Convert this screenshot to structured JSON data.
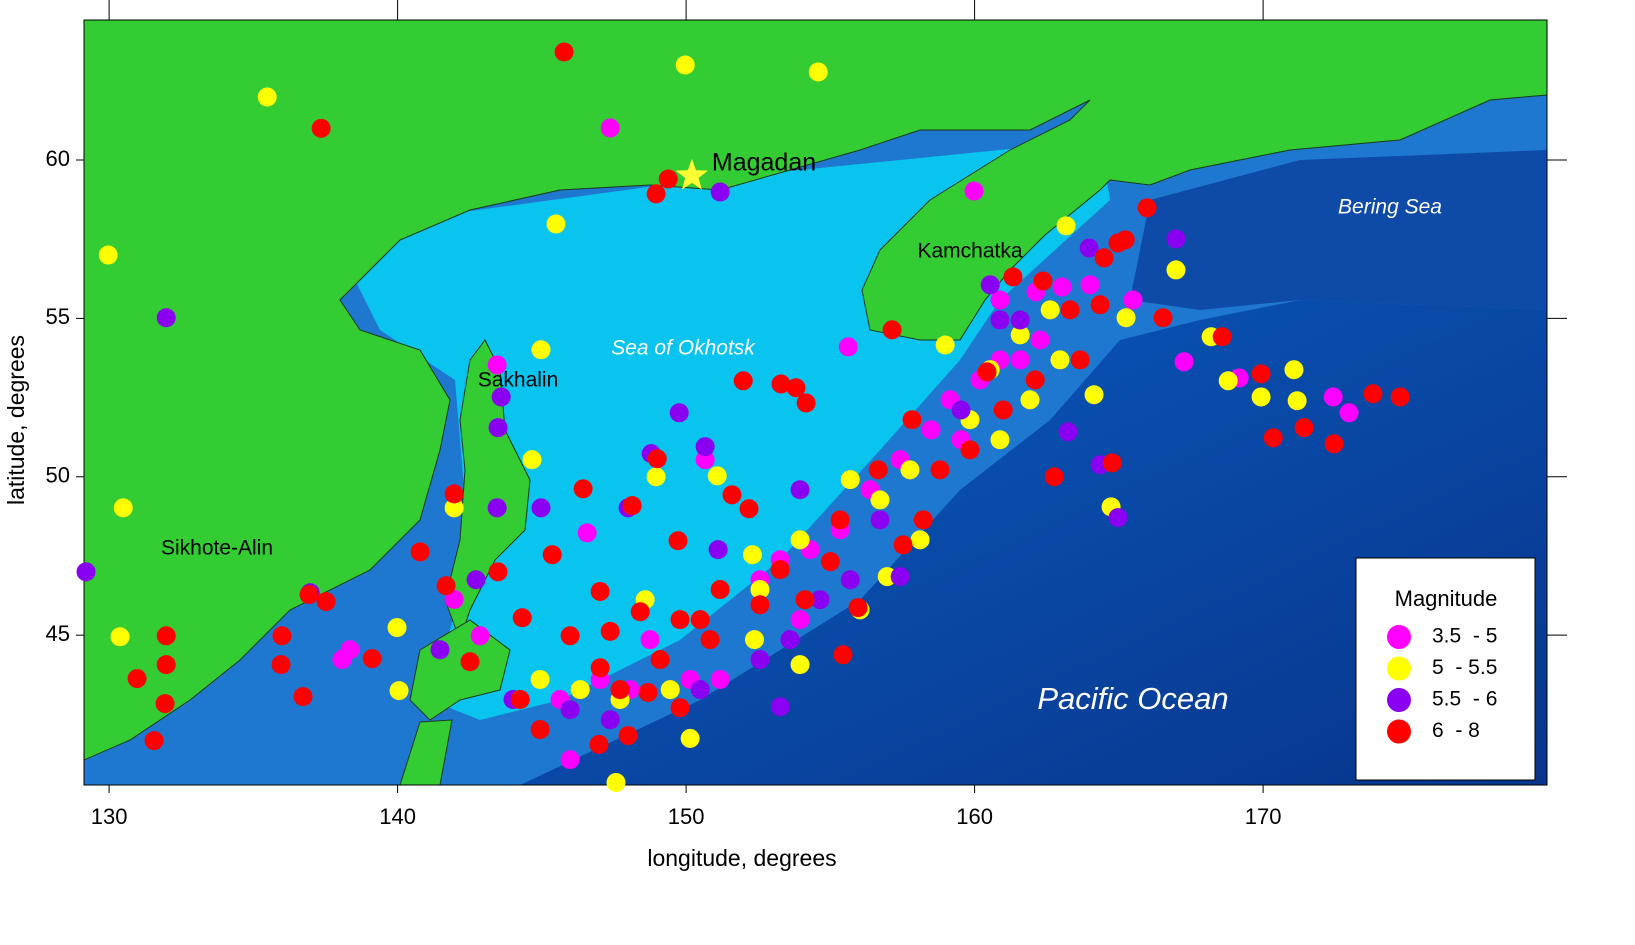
{
  "chart_data": {
    "type": "scatter",
    "x_label": "longitude, degrees",
    "y_label": "latitude, degrees",
    "xlim": [
      129.13,
      179.84
    ],
    "ylim": [
      40.27,
      64.42
    ],
    "xticks": [
      130,
      140,
      150,
      160,
      170
    ],
    "yticks": [
      45,
      50,
      55,
      60
    ],
    "legend_title": "Magnitude",
    "legend": "lower right",
    "landmark": {
      "label": "Magadan",
      "x": 150.2,
      "y": 59.5,
      "color": "#ffff33"
    },
    "annotations": [
      "Sea of Okhotsk",
      "Kamchatka",
      "Bering Sea",
      "Sakhalin",
      "Sikhote-Alin",
      "Pacific Ocean"
    ],
    "series": [
      {
        "name": "3.5  - 5",
        "color": "#ff00ff",
        "x": [
          147.37,
          159.98,
          143.45,
          167.26,
          169.17,
          172.43,
          172.98,
          165.49,
          155.62,
          162.13,
          163.03,
          164.0,
          160.88,
          162.27,
          161.58,
          160.19,
          159.15,
          157.42,
          156.38,
          155.34,
          154.3,
          153.26,
          152.56,
          150.66,
          146.57,
          138.35,
          138.07,
          141.96,
          142.86,
          147.02,
          148.06,
          148.75,
          150.14,
          151.18,
          145.63,
          145.98,
          153.95,
          158.49,
          159.53,
          160.88
        ],
        "y": [
          61.01,
          59.02,
          53.53,
          53.63,
          53.12,
          52.52,
          52.02,
          55.58,
          54.1,
          55.84,
          55.99,
          56.06,
          55.58,
          54.32,
          53.69,
          53.06,
          52.43,
          50.54,
          49.59,
          48.33,
          47.7,
          47.38,
          46.75,
          50.54,
          48.23,
          44.54,
          44.23,
          46.13,
          44.98,
          43.6,
          43.28,
          44.86,
          43.6,
          43.6,
          42.97,
          41.07,
          45.49,
          51.48,
          51.17,
          53.69
        ]
      },
      {
        "name": "5  - 5.5",
        "color": "#ffff00",
        "x": [
          135.48,
          149.97,
          154.58,
          129.97,
          145.49,
          144.97,
          163.17,
          166.98,
          165.25,
          168.2,
          168.79,
          171.07,
          171.18,
          169.93,
          164.73,
          130.49,
          130.38,
          144.66,
          141.96,
          139.98,
          140.05,
          147.57,
          150.14,
          151.08,
          148.96,
          152.3,
          152.37,
          148.58,
          153.95,
          155.69,
          156.97,
          158.11,
          158.98,
          159.84,
          160.88,
          161.92,
          162.96,
          164.14,
          156.03,
          153.95,
          152.56,
          146.33,
          144.94,
          147.71,
          149.45,
          157.76,
          156.72,
          160.54,
          161.58,
          162.62
        ],
        "y": [
          61.99,
          63.0,
          62.78,
          57.0,
          57.98,
          54.01,
          57.92,
          56.53,
          55.02,
          54.42,
          53.03,
          53.38,
          52.4,
          52.52,
          49.05,
          49.02,
          44.95,
          50.54,
          49.02,
          45.24,
          43.25,
          40.35,
          41.74,
          50.03,
          50.0,
          47.54,
          44.86,
          46.12,
          44.07,
          49.91,
          46.85,
          48.01,
          54.16,
          51.8,
          51.17,
          52.43,
          53.69,
          52.59,
          45.8,
          48.01,
          46.44,
          43.28,
          43.6,
          42.97,
          43.28,
          50.22,
          49.27,
          53.38,
          54.48,
          55.27
        ]
      },
      {
        "name": "5.5  - 6",
        "color": "#8a00f0",
        "x": [
          131.98,
          151.18,
          163.97,
          166.98,
          143.59,
          143.48,
          149.76,
          129.2,
          136.97,
          143.45,
          144.97,
          147.99,
          150.66,
          148.79,
          141.47,
          142.72,
          153.26,
          151.11,
          153.95,
          164.97,
          164.35,
          163.24,
          160.54,
          160.88,
          157.42,
          155.69,
          154.64,
          153.6,
          152.56,
          150.49,
          147.37,
          145.98,
          144.0,
          156.72,
          161.58,
          159.53
        ],
        "y": [
          55.02,
          58.99,
          57.22,
          57.51,
          52.52,
          51.55,
          52.02,
          47.0,
          46.34,
          49.02,
          49.02,
          49.02,
          50.95,
          50.73,
          44.54,
          46.75,
          42.74,
          47.7,
          49.59,
          48.71,
          50.38,
          51.42,
          56.06,
          54.95,
          46.85,
          46.75,
          46.12,
          44.86,
          44.23,
          43.28,
          42.33,
          42.65,
          42.97,
          48.64,
          54.95,
          52.11
        ]
      },
      {
        "name": "6  - 8",
        "color": "#ff0000",
        "x": [
          145.77,
          137.35,
          149.38,
          148.96,
          165.98,
          164.97,
          164.49,
          162.37,
          161.33,
          166.53,
          168.58,
          157.14,
          151.98,
          153.29,
          153.81,
          154.16,
          169.93,
          173.81,
          174.75,
          170.35,
          171.42,
          172.46,
          164.77,
          162.76,
          141.96,
          140.78,
          146.43,
          148.13,
          149.0,
          149.72,
          151.59,
          152.18,
          137.52,
          136.93,
          135.99,
          135.96,
          139.12,
          131.98,
          131.98,
          130.97,
          131.94,
          131.56,
          136.72,
          141.68,
          142.51,
          145.36,
          143.48,
          144.32,
          145.98,
          147.02,
          147.99,
          146.98,
          148.68,
          149.79,
          150.83,
          152.56,
          154.12,
          155.44,
          155.96,
          155.0,
          157.52,
          158.22,
          158.8,
          159.84,
          160.99,
          162.1,
          163.66,
          163.31,
          164.35,
          165.22,
          160.43,
          157.83,
          156.66,
          155.34,
          153.26,
          151.18,
          150.49,
          149.1,
          144.25,
          144.94,
          147.71,
          147.02,
          147.37,
          148.41,
          149.79
        ],
        "y": [
          63.41,
          61.0,
          59.4,
          58.93,
          58.49,
          57.38,
          56.91,
          56.18,
          56.31,
          55.02,
          54.42,
          54.64,
          53.03,
          52.93,
          52.81,
          52.33,
          53.25,
          52.62,
          52.52,
          51.23,
          51.55,
          51.04,
          50.44,
          50.0,
          49.46,
          47.63,
          49.62,
          49.09,
          50.57,
          47.98,
          49.43,
          48.99,
          46.06,
          46.28,
          44.98,
          44.07,
          44.26,
          44.98,
          44.07,
          43.63,
          42.84,
          41.67,
          43.06,
          46.56,
          44.16,
          47.54,
          47.0,
          45.55,
          44.98,
          43.97,
          41.83,
          41.55,
          43.19,
          42.71,
          44.86,
          45.96,
          46.12,
          44.38,
          45.87,
          47.32,
          47.85,
          48.64,
          50.22,
          50.85,
          52.11,
          53.06,
          53.69,
          55.27,
          55.43,
          57.48,
          53.31,
          51.8,
          50.22,
          48.64,
          47.07,
          46.44,
          45.49,
          44.23,
          42.97,
          42.02,
          43.28,
          46.38,
          45.12,
          45.74,
          45.49
        ]
      }
    ]
  }
}
